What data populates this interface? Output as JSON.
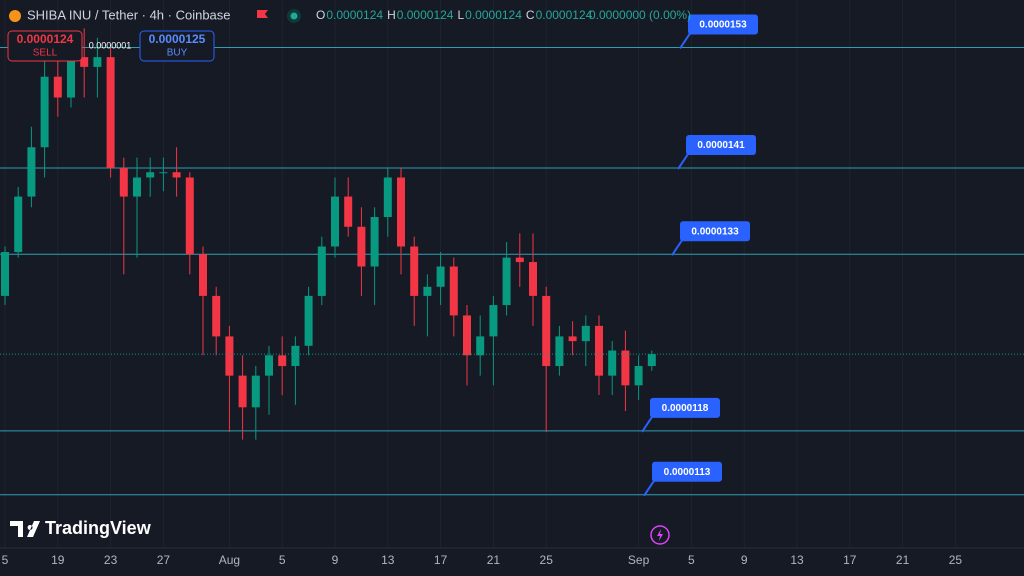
{
  "header": {
    "symbol": "SHIBA INU / Tether · 4h · Coinbase",
    "ohlc": [
      {
        "key": "O",
        "value": "0.0000124"
      },
      {
        "key": "H",
        "value": "0.0000124"
      },
      {
        "key": "L",
        "value": "0.0000124"
      },
      {
        "key": "C",
        "value": "0.0000124"
      }
    ],
    "change": "0.0000000 (0.00%)"
  },
  "trade": {
    "sell_price": "0.0000124",
    "sell_label": "SELL",
    "spread": "0.0000001",
    "buy_price": "0.0000125",
    "buy_label": "BUY"
  },
  "logo": "TradingView",
  "chart_data": {
    "type": "candlestick",
    "log_scale": true,
    "ylim": [
      1.09e-05,
      1.58e-05
    ],
    "up_color": "#089981",
    "down_color": "#f23645",
    "level_color": "#2f9fb0",
    "label_color": "#2962ff",
    "categories": [
      "5",
      null,
      null,
      null,
      "19",
      null,
      null,
      null,
      "23",
      null,
      null,
      null,
      "27",
      null,
      null,
      null,
      null,
      "Aug",
      null,
      null,
      null,
      "5",
      null,
      null,
      null,
      "9",
      null,
      null,
      null,
      "13",
      null,
      null,
      null,
      "17",
      null,
      null,
      null,
      "21",
      null,
      null,
      null,
      "25",
      null,
      null,
      null,
      null,
      null,
      null,
      "Sep",
      null,
      null,
      null,
      "5",
      null,
      null,
      null,
      "9",
      null,
      null,
      null,
      "13",
      null,
      null,
      null,
      "17",
      null,
      null,
      null,
      "21",
      null,
      null,
      null,
      "25",
      null,
      null,
      null
    ],
    "open": [
      1.293e-05,
      1.332e-05,
      1.383e-05,
      1.43e-05,
      1.5e-05,
      1.479e-05,
      1.52e-05,
      1.51e-05,
      1.52e-05,
      1.41e-05,
      1.383e-05,
      1.401e-05,
      1.406e-05,
      1.406e-05,
      1.401e-05,
      1.33e-05,
      1.293e-05,
      1.258e-05,
      1.225e-05,
      1.199e-05,
      1.225e-05,
      1.242e-05,
      1.233e-05,
      1.25e-05,
      1.293e-05,
      1.337e-05,
      1.383e-05,
      1.355e-05,
      1.319e-05,
      1.364e-05,
      1.401e-05,
      1.337e-05,
      1.293e-05,
      1.301e-05,
      1.319e-05,
      1.276e-05,
      1.242e-05,
      1.258e-05,
      1.285e-05,
      1.327e-05,
      1.323e-05,
      1.293e-05,
      1.233e-05,
      1.258e-05,
      1.254e-05,
      1.267e-05,
      1.225e-05,
      1.246e-05,
      1.217e-05,
      1.233e-05,
      null,
      null,
      null,
      null,
      null,
      null,
      null,
      null,
      null,
      null,
      null,
      null,
      null,
      null,
      null,
      null,
      null,
      null,
      null,
      null,
      null,
      null,
      null,
      null,
      null,
      null
    ],
    "high": [
      1.337e-05,
      1.392e-05,
      1.45e-05,
      1.521e-05,
      1.53e-05,
      1.54e-05,
      1.55e-05,
      1.54e-05,
      1.53e-05,
      1.42e-05,
      1.42e-05,
      1.42e-05,
      1.42e-05,
      1.43e-05,
      1.406e-05,
      1.337e-05,
      1.301e-05,
      1.267e-05,
      1.242e-05,
      1.233e-05,
      1.25e-05,
      1.258e-05,
      1.258e-05,
      1.301e-05,
      1.346e-05,
      1.401e-05,
      1.401e-05,
      1.373e-05,
      1.373e-05,
      1.41e-05,
      1.41e-05,
      1.346e-05,
      1.312e-05,
      1.332e-05,
      1.327e-05,
      1.285e-05,
      1.276e-05,
      1.293e-05,
      1.341e-05,
      1.349e-05,
      1.349e-05,
      1.301e-05,
      1.267e-05,
      1.271e-05,
      1.276e-05,
      1.276e-05,
      1.254e-05,
      1.263e-05,
      1.242e-05,
      1.246e-05,
      null,
      null,
      null,
      null,
      null,
      null,
      null,
      null,
      null,
      null,
      null,
      null,
      null,
      null,
      null,
      null,
      null,
      null,
      null,
      null,
      null,
      null,
      null,
      null,
      null,
      null
    ],
    "low": [
      1.285e-05,
      1.327e-05,
      1.373e-05,
      1.401e-05,
      1.46e-05,
      1.469e-05,
      1.479e-05,
      1.479e-05,
      1.401e-05,
      1.312e-05,
      1.327e-05,
      1.383e-05,
      1.388e-05,
      1.383e-05,
      1.312e-05,
      1.242e-05,
      1.242e-05,
      1.179e-05,
      1.173e-05,
      1.173e-05,
      1.193e-05,
      1.209e-05,
      1.201e-05,
      1.242e-05,
      1.285e-05,
      1.327e-05,
      1.346e-05,
      1.293e-05,
      1.285e-05,
      1.346e-05,
      1.312e-05,
      1.267e-05,
      1.258e-05,
      1.285e-05,
      1.258e-05,
      1.217e-05,
      1.225e-05,
      1.217e-05,
      1.276e-05,
      1.301e-05,
      1.267e-05,
      1.179e-05,
      1.225e-05,
      1.242e-05,
      1.233e-05,
      1.209e-05,
      1.209e-05,
      1.196e-05,
      1.205e-05,
      1.229e-05,
      null,
      null,
      null,
      null,
      null,
      null,
      null,
      null,
      null,
      null,
      null,
      null,
      null,
      null,
      null,
      null,
      null,
      null,
      null,
      null,
      null,
      null,
      null,
      null,
      null,
      null
    ],
    "close": [
      1.332e-05,
      1.383e-05,
      1.43e-05,
      1.5e-05,
      1.479e-05,
      1.52e-05,
      1.51e-05,
      1.52e-05,
      1.41e-05,
      1.383e-05,
      1.401e-05,
      1.406e-05,
      1.406e-05,
      1.401e-05,
      1.33e-05,
      1.293e-05,
      1.258e-05,
      1.225e-05,
      1.199e-05,
      1.225e-05,
      1.242e-05,
      1.233e-05,
      1.25e-05,
      1.293e-05,
      1.337e-05,
      1.383e-05,
      1.355e-05,
      1.319e-05,
      1.364e-05,
      1.401e-05,
      1.337e-05,
      1.293e-05,
      1.301e-05,
      1.319e-05,
      1.276e-05,
      1.242e-05,
      1.258e-05,
      1.285e-05,
      1.327e-05,
      1.323e-05,
      1.293e-05,
      1.233e-05,
      1.258e-05,
      1.254e-05,
      1.267e-05,
      1.225e-05,
      1.246e-05,
      1.217e-05,
      1.233e-05,
      1.243e-05,
      null,
      null,
      null,
      null,
      null,
      null,
      null,
      null,
      null,
      null,
      null,
      null,
      null,
      null,
      null,
      null,
      null,
      null,
      null,
      null,
      null,
      null,
      null,
      null,
      null,
      null
    ],
    "levels": [
      1.53e-05,
      1.41e-05,
      1.33e-05,
      1.18e-05,
      1.13e-05
    ]
  }
}
